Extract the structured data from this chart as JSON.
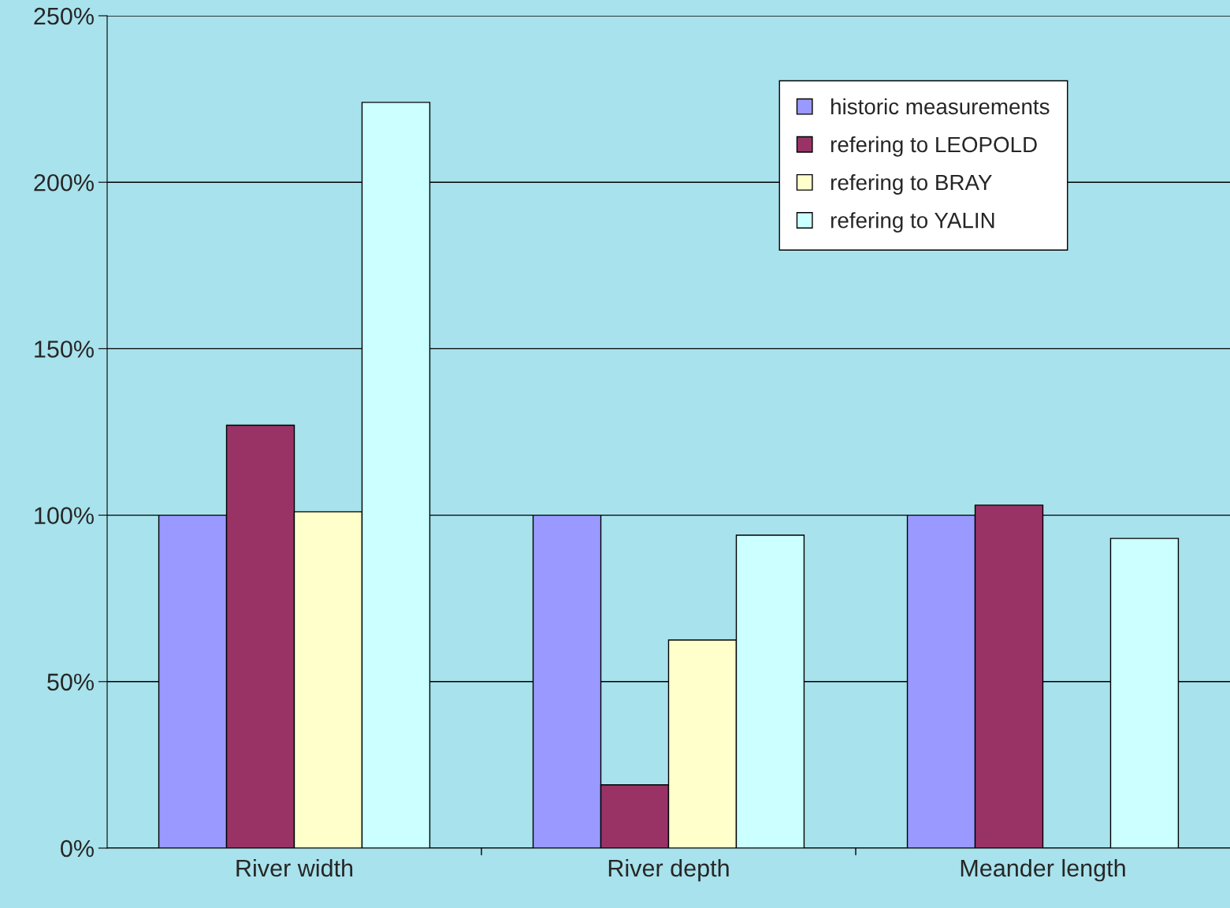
{
  "chart_data": {
    "type": "bar",
    "categories": [
      "River width",
      "River depth",
      "Meander length"
    ],
    "series": [
      {
        "name": "historic measurements",
        "color": "#9999ff",
        "values": [
          100,
          100,
          100
        ]
      },
      {
        "name": "refering to LEOPOLD",
        "color": "#993366",
        "values": [
          127,
          19,
          103
        ]
      },
      {
        "name": "refering to BRAY",
        "color": "#ffffcc",
        "values": [
          101,
          62.5,
          null
        ]
      },
      {
        "name": "refering to YALIN",
        "color": "#ccffff",
        "values": [
          224,
          94,
          93
        ]
      }
    ],
    "ylim": [
      0,
      250
    ],
    "yticks": [
      {
        "value": 0,
        "label": "0%"
      },
      {
        "value": 50,
        "label": "50%"
      },
      {
        "value": 100,
        "label": "100%"
      },
      {
        "value": 150,
        "label": "150%"
      },
      {
        "value": 200,
        "label": "200%"
      },
      {
        "value": 250,
        "label": "250%"
      }
    ],
    "grid": "y",
    "legend": "top right"
  }
}
